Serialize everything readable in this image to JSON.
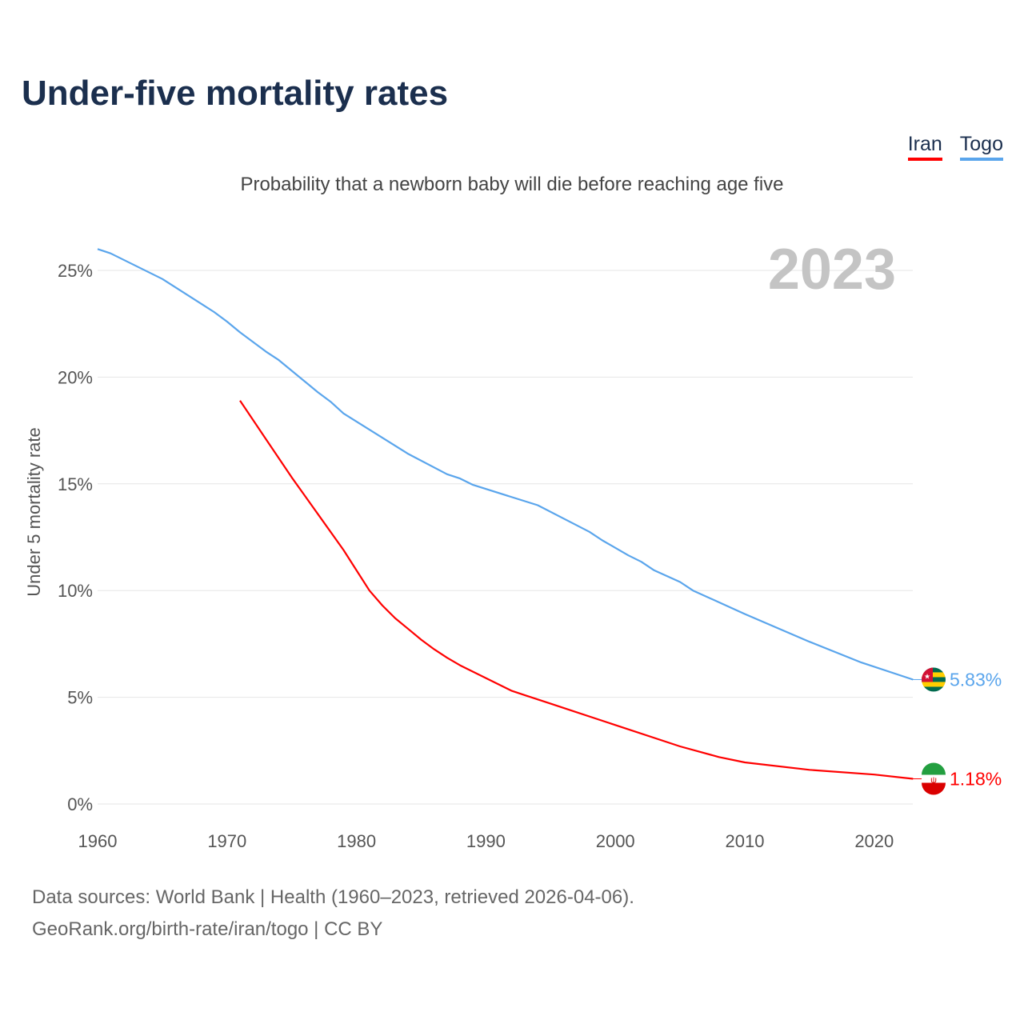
{
  "title": "Under-five mortality rates",
  "subtitle": "Probability that a newborn baby will die before reaching age five",
  "year_label": "2023",
  "sources": [
    "Data sources: World Bank | Health (1960–2023, retrieved 2026-04-06).",
    "GeoRank.org/birth-rate/iran/togo | CC BY"
  ],
  "chart_data": {
    "type": "line",
    "title": "Under-five mortality rates",
    "ylabel": "Under 5 mortality rate",
    "xlabel": "",
    "xlim": [
      1960,
      2023
    ],
    "ylim": [
      0,
      27
    ],
    "xticks": [
      1960,
      1970,
      1980,
      1990,
      2000,
      2010,
      2020
    ],
    "xtick_labels": [
      "1960",
      "1970",
      "1980",
      "1990",
      "2000",
      "2010",
      "2020"
    ],
    "yticks": [
      0,
      5,
      10,
      15,
      20,
      25
    ],
    "ytick_labels": [
      "0%",
      "5%",
      "10%",
      "15%",
      "20%",
      "25%"
    ],
    "legend": "top-right",
    "series": [
      {
        "name": "Iran",
        "color": "#ff0000",
        "end_label": "1.18%",
        "x": [
          1971,
          1973,
          1975,
          1977,
          1979,
          1980,
          1981,
          1982,
          1983,
          1984,
          1985,
          1986,
          1987,
          1988,
          1989,
          1990,
          1991,
          1992,
          1993,
          1995,
          2000,
          2005,
          2008,
          2010,
          2015,
          2020,
          2023
        ],
        "y": [
          18.9,
          17.1,
          15.3,
          13.6,
          11.9,
          10.95,
          10.0,
          9.3,
          8.7,
          8.2,
          7.7,
          7.25,
          6.85,
          6.5,
          6.2,
          5.9,
          5.6,
          5.3,
          5.1,
          4.7,
          3.7,
          2.7,
          2.2,
          1.95,
          1.6,
          1.38,
          1.18
        ]
      },
      {
        "name": "Togo",
        "color": "#5aa5ec",
        "end_label": "5.83%",
        "x": [
          1960,
          1961,
          1965,
          1969,
          1970,
          1971,
          1973,
          1974,
          1977,
          1978,
          1979,
          1984,
          1987,
          1988,
          1989,
          1994,
          1998,
          1999,
          2000,
          2001,
          2002,
          2003,
          2005,
          2006,
          2010,
          2015,
          2019,
          2023
        ],
        "y": [
          26.0,
          25.8,
          24.6,
          23.05,
          22.6,
          22.1,
          21.2,
          20.8,
          19.3,
          18.85,
          18.3,
          16.4,
          15.45,
          15.25,
          14.95,
          14.0,
          12.75,
          12.35,
          12.0,
          11.65,
          11.35,
          10.95,
          10.4,
          10.0,
          8.9,
          7.6,
          6.63,
          5.83
        ]
      }
    ]
  }
}
